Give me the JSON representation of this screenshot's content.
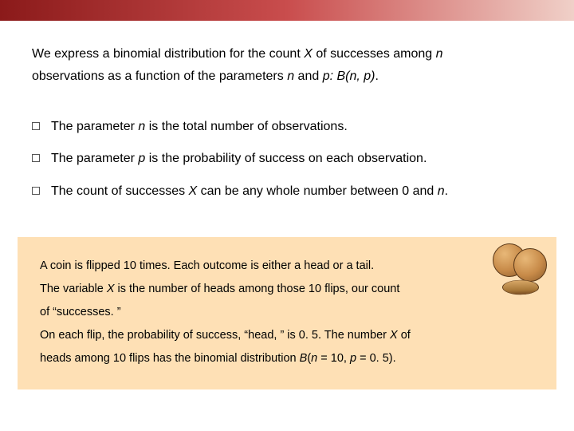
{
  "colors": {
    "bar_gradient_start": "#8b1a1a",
    "bar_gradient_mid": "#c94d4d",
    "bar_gradient_end": "#f0d0c8",
    "example_bg": "#fee0b5",
    "text": "#000000"
  },
  "intro": {
    "line1_a": "We express a binomial distribution for the count ",
    "line1_X": "X",
    "line1_b": " of successes among ",
    "line1_n": "n",
    "line2_a": "observations as a function of the parameters ",
    "line2_n": "n",
    "line2_b": " and ",
    "line2_p": "p: B(n, p)",
    "line2_c": "."
  },
  "bullets": [
    {
      "pre": "The parameter ",
      "em": "n",
      "post": " is the total number of observations."
    },
    {
      "pre": "The parameter ",
      "em": "p",
      "post": " is the probability of success on each observation."
    },
    {
      "pre": "The count of successes ",
      "em": "X",
      "post_a": " can be any whole number between 0 and ",
      "em2": "n",
      "post_b": "."
    }
  ],
  "example": {
    "p1": "A coin is flipped 10 times. Each outcome is either a head or a tail.",
    "p2_a": "The variable ",
    "p2_X": "X",
    "p2_b": " is the number of heads among those 10 flips, our count",
    "p3": "of “successes. ”",
    "p4_a": "On each flip, the probability of success, “head, ” is 0. 5. The number ",
    "p4_X": "X",
    "p4_b": " of",
    "p5_a": "heads among 10 flips has the binomial distribution ",
    "p5_B": "B",
    "p5_b": "(",
    "p5_n": "n",
    "p5_c": " = 10, ",
    "p5_p": "p",
    "p5_d": " = 0. 5)."
  }
}
